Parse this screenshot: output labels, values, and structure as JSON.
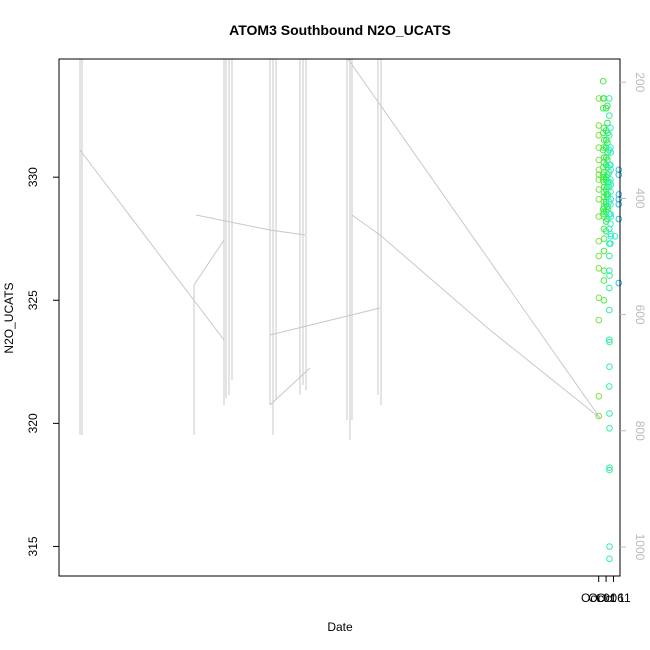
{
  "chart_data": {
    "type": "scatter",
    "title": "ATOM3 Southbound N2O_UCATS",
    "xlabel": "Date",
    "ylabel": "N2O_UCATS",
    "x_ticks": [
      {
        "date": "2017-10-01",
        "label": "Oct 01"
      },
      {
        "date": "2017-10-06",
        "label": "Oct 06"
      },
      {
        "date": "2017-10-11",
        "label": "Oct 11"
      }
    ],
    "xlim": [
      "2016-09-30T18:00",
      "2017-10-15T10:00"
    ],
    "ylim": [
      313.8,
      334.8
    ],
    "y_ticks": [
      315,
      320,
      325,
      330
    ],
    "right_axis": {
      "label": "",
      "ticks": [
        200,
        400,
        600,
        800,
        1000
      ],
      "lim": [
        1050,
        160
      ],
      "color": "#bbbbbb"
    },
    "grid": false,
    "marker": "open-circle",
    "altitude_trace_color": "#c8c8c8",
    "series": [
      {
        "color": "#80e040",
        "points": [
          [
            "2017-10-01T01:00",
            333.2
          ],
          [
            "2017-10-01T01:00",
            332.1
          ],
          [
            "2017-10-01T01:00",
            331.7
          ],
          [
            "2017-10-01T01:00",
            330.7
          ],
          [
            "2017-10-01T01:00",
            330.3
          ],
          [
            "2017-10-01T01:00",
            329.9
          ],
          [
            "2017-10-01T01:00",
            329.5
          ],
          [
            "2017-10-01T01:00",
            329.1
          ],
          [
            "2017-10-01T01:00",
            328.4
          ],
          [
            "2017-10-01T01:00",
            327.4
          ],
          [
            "2017-10-01T01:00",
            326.8
          ],
          [
            "2017-10-01T01:00",
            326.3
          ],
          [
            "2017-10-01T01:00",
            325.1
          ],
          [
            "2017-10-01T01:00",
            324.2
          ],
          [
            "2017-10-01T01:00",
            321.1
          ],
          [
            "2017-10-01T01:00",
            320.3
          ],
          [
            "2017-10-01T01:00",
            330.1
          ],
          [
            "2017-10-01T01:00",
            331.2
          ]
        ]
      },
      {
        "color": "#44f040",
        "points": [
          [
            "2017-10-04T01:00",
            333.9
          ],
          [
            "2017-10-04T01:00",
            333.2
          ],
          [
            "2017-10-04T01:00",
            332.8
          ],
          [
            "2017-10-04T01:00",
            331.8
          ],
          [
            "2017-10-04T01:00",
            331.1
          ],
          [
            "2017-10-04T01:00",
            330.4
          ],
          [
            "2017-10-04T01:00",
            330.1
          ],
          [
            "2017-10-04T01:00",
            329.9
          ],
          [
            "2017-10-04T01:00",
            328.7
          ],
          [
            "2017-10-04T01:00",
            328.5
          ],
          [
            "2017-10-04T12:00",
            332.0
          ],
          [
            "2017-10-04T12:00",
            331.2
          ],
          [
            "2017-10-04T12:00",
            330.6
          ],
          [
            "2017-10-04T12:00",
            330.2
          ],
          [
            "2017-10-04T12:00",
            329.8
          ],
          [
            "2017-10-04T12:00",
            329.4
          ],
          [
            "2017-10-04T12:00",
            329.0
          ],
          [
            "2017-10-04T12:00",
            328.6
          ],
          [
            "2017-10-04T12:00",
            327.9
          ],
          [
            "2017-10-04T12:00",
            327.0
          ],
          [
            "2017-10-04T12:00",
            325.8
          ],
          [
            "2017-10-04T12:00",
            325.0
          ],
          [
            "2017-10-04T16:00",
            333.2
          ],
          [
            "2017-10-04T16:00",
            331.5
          ],
          [
            "2017-10-04T16:00",
            330.8
          ],
          [
            "2017-10-04T16:00",
            330.0
          ],
          [
            "2017-10-04T16:00",
            329.6
          ],
          [
            "2017-10-04T16:00",
            329.2
          ],
          [
            "2017-10-04T16:00",
            328.8
          ],
          [
            "2017-10-04T16:00",
            328.4
          ],
          [
            "2017-10-04T16:00",
            327.5
          ],
          [
            "2017-10-04T16:00",
            326.2
          ]
        ]
      },
      {
        "color": "#22f050",
        "points": [
          [
            "2017-10-06T01:00",
            332.8
          ],
          [
            "2017-10-06T01:00",
            331.9
          ],
          [
            "2017-10-06T01:00",
            331.2
          ],
          [
            "2017-10-06T01:00",
            330.5
          ],
          [
            "2017-10-06T01:00",
            329.9
          ],
          [
            "2017-10-06T01:00",
            329.5
          ],
          [
            "2017-10-06T01:00",
            329.0
          ],
          [
            "2017-10-06T01:00",
            328.6
          ],
          [
            "2017-10-06T01:00",
            328.2
          ],
          [
            "2017-10-06T01:00",
            327.8
          ],
          [
            "2017-10-06T04:00",
            331.5
          ],
          [
            "2017-10-06T04:00",
            330.8
          ],
          [
            "2017-10-06T04:00",
            330.0
          ],
          [
            "2017-10-06T04:00",
            329.3
          ],
          [
            "2017-10-06T04:00",
            328.9
          ],
          [
            "2017-10-06T21:00",
            332.9
          ],
          [
            "2017-10-06T21:00",
            332.2
          ],
          [
            "2017-10-06T21:00",
            331.4
          ],
          [
            "2017-10-06T21:00",
            330.7
          ],
          [
            "2017-10-06T21:00",
            330.1
          ],
          [
            "2017-10-06T21:00",
            329.6
          ],
          [
            "2017-10-06T21:00",
            329.2
          ],
          [
            "2017-10-06T21:00",
            328.8
          ],
          [
            "2017-10-06T21:00",
            328.3
          ],
          [
            "2017-10-07T02:00",
            331.8
          ],
          [
            "2017-10-07T02:00",
            331.0
          ],
          [
            "2017-10-07T02:00",
            330.4
          ],
          [
            "2017-10-07T02:00",
            329.8
          ],
          [
            "2017-10-07T02:00",
            329.3
          ],
          [
            "2017-10-07T02:00",
            328.7
          ]
        ]
      },
      {
        "color": "#33f0a0",
        "points": [
          [
            "2017-10-08T04:00",
            333.2
          ],
          [
            "2017-10-08T04:00",
            332.5
          ],
          [
            "2017-10-08T04:00",
            331.7
          ],
          [
            "2017-10-08T04:00",
            331.1
          ],
          [
            "2017-10-08T04:00",
            330.2
          ],
          [
            "2017-10-08T04:00",
            329.6
          ],
          [
            "2017-10-08T04:00",
            329.0
          ],
          [
            "2017-10-08T04:00",
            328.5
          ],
          [
            "2017-10-08T04:00",
            327.9
          ],
          [
            "2017-10-08T04:00",
            327.3
          ],
          [
            "2017-10-08T04:00",
            326.8
          ],
          [
            "2017-10-08T04:00",
            326.2
          ],
          [
            "2017-10-08T04:00",
            325.5
          ],
          [
            "2017-10-08T04:00",
            324.6
          ],
          [
            "2017-10-08T04:00",
            323.4
          ],
          [
            "2017-10-08T04:00",
            321.5
          ],
          [
            "2017-10-08T08:00",
            326.0
          ],
          [
            "2017-10-08T08:00",
            323.3
          ],
          [
            "2017-10-08T08:00",
            322.3
          ],
          [
            "2017-10-08T08:00",
            320.4
          ],
          [
            "2017-10-08T08:00",
            319.8
          ],
          [
            "2017-10-08T08:00",
            318.2
          ],
          [
            "2017-10-08T08:00",
            318.1
          ],
          [
            "2017-10-08T08:00",
            315.0
          ],
          [
            "2017-10-08T08:00",
            314.5
          ],
          [
            "2017-10-08T08:00",
            330.5
          ],
          [
            "2017-10-08T08:00",
            329.8
          ]
        ]
      },
      {
        "color": "#33eecc",
        "points": [
          [
            "2017-10-09T00:00",
            332.0
          ],
          [
            "2017-10-09T00:00",
            331.2
          ],
          [
            "2017-10-09T00:00",
            330.5
          ],
          [
            "2017-10-09T00:00",
            329.9
          ],
          [
            "2017-10-09T00:00",
            329.4
          ],
          [
            "2017-10-09T00:00",
            328.9
          ],
          [
            "2017-10-09T00:00",
            328.5
          ],
          [
            "2017-10-09T00:00",
            328.1
          ],
          [
            "2017-10-09T00:00",
            327.7
          ],
          [
            "2017-10-09T00:00",
            327.3
          ],
          [
            "2017-10-09T04:00",
            331.0
          ],
          [
            "2017-10-09T04:00",
            330.3
          ],
          [
            "2017-10-09T04:00",
            329.7
          ],
          [
            "2017-10-09T04:00",
            329.1
          ],
          [
            "2017-10-09T04:00",
            328.4
          ],
          [
            "2017-10-09T04:00",
            327.6
          ],
          [
            "2017-10-12T00:00",
            327.6
          ]
        ]
      },
      {
        "color": "#33bbee",
        "points": [
          [
            "2017-10-14T14:00",
            330.3
          ],
          [
            "2017-10-14T14:00",
            330.1
          ],
          [
            "2017-10-14T14:00",
            329.3
          ],
          [
            "2017-10-14T14:00",
            329.1
          ],
          [
            "2017-10-14T14:00",
            328.9
          ],
          [
            "2017-10-14T14:00",
            328.3
          ],
          [
            "2017-10-14T14:00",
            325.7
          ]
        ]
      }
    ]
  }
}
